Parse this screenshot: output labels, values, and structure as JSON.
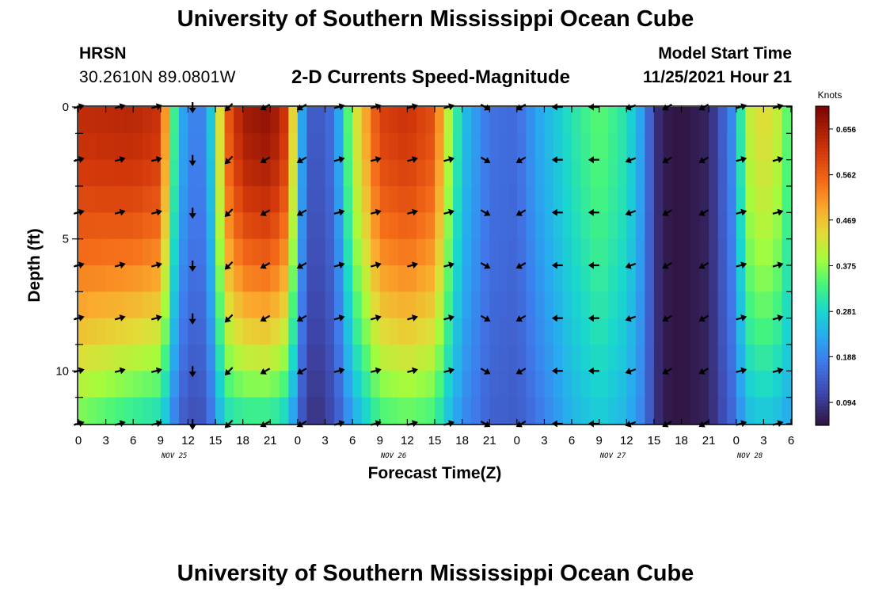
{
  "header": {
    "title": "University of Southern Mississippi Ocean Cube",
    "station": "HRSN",
    "coordinates": "30.2610N  89.0801W",
    "subtitle": "2-D Currents Speed-Magnitude",
    "start_label": "Model Start Time",
    "start_value": "11/25/2021 Hour 21"
  },
  "footer": {
    "title": "University of Southern Mississippi Ocean Cube"
  },
  "chart_data": {
    "type": "heatmap",
    "title": "2-D Currents Speed-Magnitude",
    "xlabel": "Forecast Time(Z)",
    "ylabel": "Depth (ft)",
    "xlim_hours": [
      0,
      78
    ],
    "ylim": [
      0,
      12
    ],
    "y_ticks": [
      0,
      5,
      10
    ],
    "x_tick_labels": [
      "0",
      "3",
      "6",
      "9",
      "12",
      "15",
      "18",
      "21",
      "0",
      "3",
      "6",
      "9",
      "12",
      "15",
      "18",
      "21",
      "0",
      "3",
      "6",
      "9",
      "12",
      "15",
      "18",
      "21",
      "0",
      "3",
      "6"
    ],
    "day_labels": [
      {
        "label": "NOV 25",
        "hour": 10.5
      },
      {
        "label": "NOV 26",
        "hour": 34.5
      },
      {
        "label": "NOV 27",
        "hour": 58.5
      },
      {
        "label": "NOV 28",
        "hour": 73.5
      }
    ],
    "colorbar": {
      "units": "Knots",
      "min": 0.047,
      "max": 0.703,
      "tick_values": [
        0.094,
        0.188,
        0.281,
        0.375,
        0.469,
        0.562,
        0.656
      ],
      "tick_labels": [
        "0.094",
        "0.188",
        "0.281",
        "0.375",
        "0.469",
        "0.562",
        "0.656"
      ]
    },
    "speed_profile_hours": [
      0,
      6,
      9,
      10,
      11,
      12,
      13,
      14,
      15,
      16,
      18,
      21,
      23,
      24,
      25,
      26,
      28,
      30,
      33,
      36,
      39,
      40,
      42,
      45,
      48,
      50,
      54,
      57,
      60,
      62,
      63,
      64,
      66,
      69,
      72,
      73,
      75,
      77,
      78
    ],
    "speed_profile_surface": [
      0.63,
      0.64,
      0.62,
      0.4,
      0.25,
      0.2,
      0.18,
      0.2,
      0.33,
      0.55,
      0.66,
      0.68,
      0.6,
      0.3,
      0.15,
      0.13,
      0.17,
      0.4,
      0.6,
      0.62,
      0.58,
      0.45,
      0.26,
      0.17,
      0.16,
      0.22,
      0.3,
      0.35,
      0.3,
      0.2,
      0.1,
      0.06,
      0.05,
      0.07,
      0.22,
      0.4,
      0.45,
      0.4,
      0.3
    ],
    "speed_profile_bottom": [
      0.35,
      0.3,
      0.28,
      0.22,
      0.15,
      0.13,
      0.12,
      0.14,
      0.2,
      0.28,
      0.3,
      0.3,
      0.26,
      0.16,
      0.1,
      0.08,
      0.12,
      0.22,
      0.32,
      0.34,
      0.32,
      0.27,
      0.2,
      0.15,
      0.14,
      0.17,
      0.24,
      0.27,
      0.24,
      0.18,
      0.1,
      0.06,
      0.05,
      0.07,
      0.17,
      0.24,
      0.26,
      0.24,
      0.22
    ],
    "vector_depths_ft": [
      0,
      2,
      4,
      6,
      8,
      10,
      12
    ],
    "vector_hours": [
      0,
      4.5,
      8.5,
      12.5,
      16.5,
      20.5,
      24.5,
      28.5,
      32.5,
      36.5,
      40.5,
      44.5,
      48.5,
      52.5,
      56.5,
      60.5,
      64.5,
      68.5,
      72.5,
      76.5
    ],
    "vector_directions_deg": [
      75,
      75,
      75,
      180,
      225,
      240,
      240,
      75,
      75,
      75,
      75,
      120,
      240,
      270,
      270,
      250,
      240,
      240,
      75,
      75
    ]
  }
}
